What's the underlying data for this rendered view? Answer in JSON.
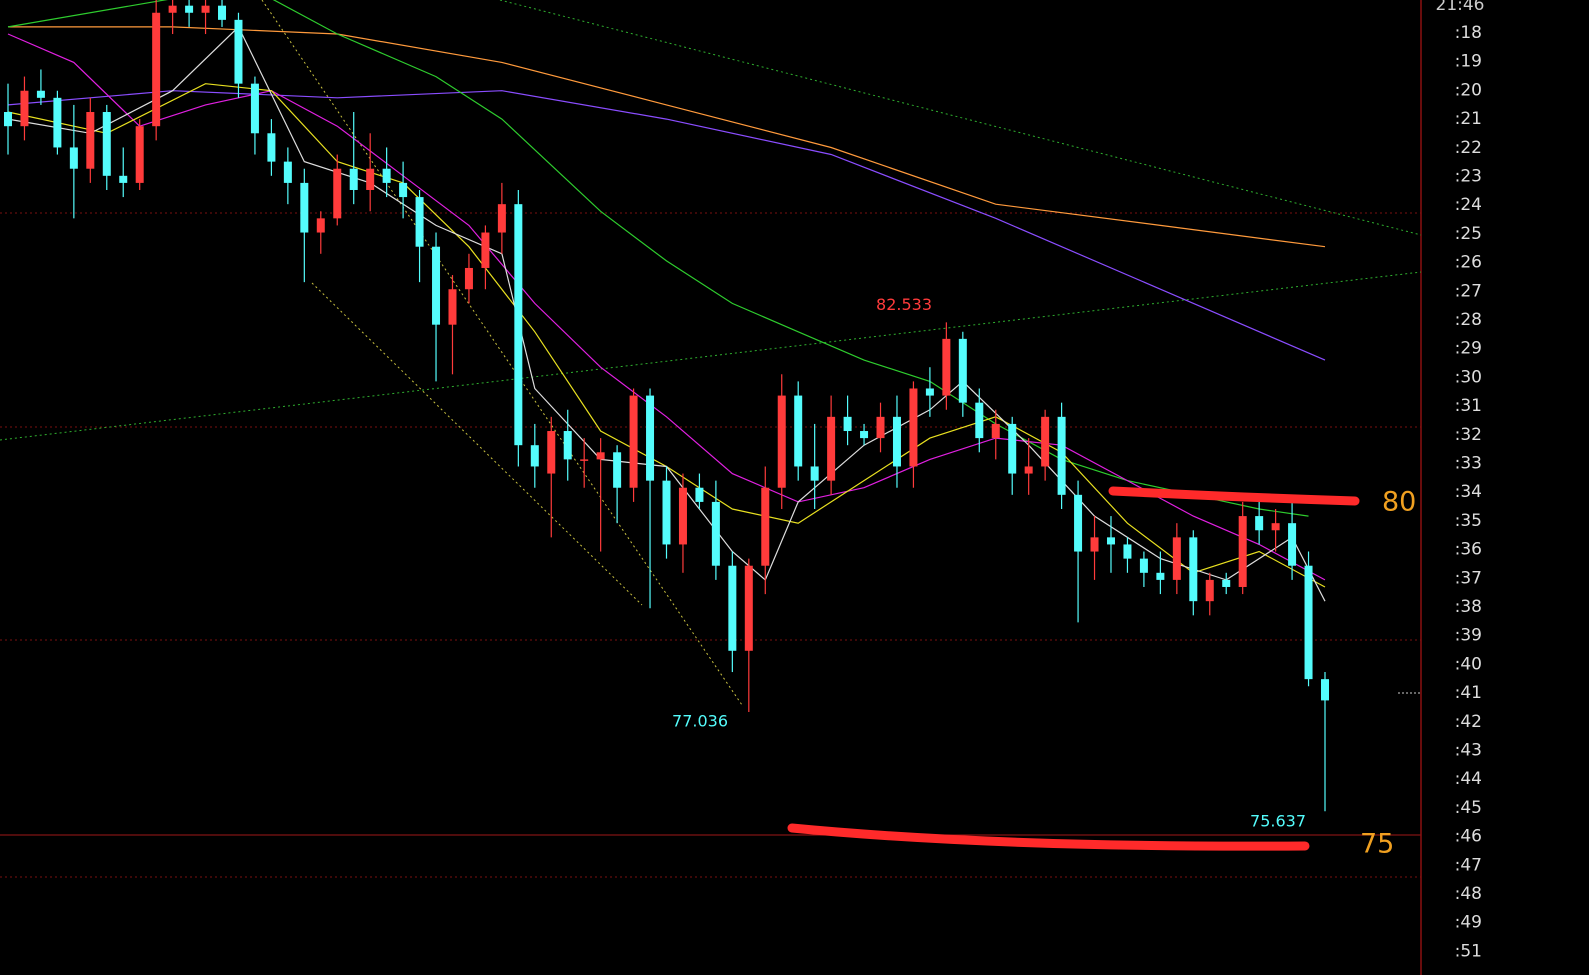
{
  "chart_data": {
    "type": "candlestick",
    "ylim": [
      73.51,
      87.08
    ],
    "up_color": "#ff3b3b",
    "down_color": "#54fcfc",
    "open": [
      85.5,
      85.3,
      85.8,
      85.7,
      85.0,
      84.7,
      85.5,
      84.6,
      84.5,
      85.3,
      86.9,
      87.0,
      86.9,
      87.0,
      86.8,
      85.9,
      85.2,
      84.8,
      84.5,
      83.8,
      84.0,
      84.7,
      84.4,
      84.7,
      84.5,
      84.3,
      83.6,
      82.5,
      83.0,
      83.3,
      83.8,
      84.2,
      80.8,
      80.4,
      81.0,
      80.6,
      80.6,
      80.7,
      80.2,
      81.5,
      80.3,
      79.4,
      80.2,
      80.0,
      79.1,
      77.9,
      79.1,
      80.2,
      81.5,
      80.5,
      80.3,
      81.2,
      81.0,
      80.9,
      81.2,
      80.5,
      81.6,
      81.5,
      82.3,
      81.4,
      80.9,
      81.1,
      80.4,
      80.5,
      81.2,
      80.1,
      79.3,
      79.5,
      79.4,
      79.2,
      79.0,
      78.9,
      79.5,
      78.6,
      78.9,
      78.8,
      79.8,
      79.6,
      79.7,
      79.1,
      77.5
    ],
    "high": [
      85.9,
      86.0,
      86.1,
      85.8,
      85.6,
      85.7,
      85.6,
      85.0,
      85.4,
      87.1,
      87.1,
      87.1,
      87.1,
      87.1,
      86.9,
      86.0,
      85.4,
      85.0,
      84.7,
      84.1,
      84.9,
      85.5,
      85.2,
      85.0,
      84.8,
      84.4,
      83.8,
      83.2,
      83.5,
      83.9,
      84.5,
      84.4,
      81.1,
      81.2,
      81.3,
      80.9,
      80.9,
      80.8,
      81.6,
      81.6,
      80.5,
      80.4,
      80.4,
      80.3,
      79.3,
      79.2,
      80.5,
      81.8,
      81.7,
      81.1,
      81.5,
      81.5,
      81.1,
      81.4,
      81.5,
      81.7,
      81.9,
      82.533,
      82.4,
      81.6,
      81.3,
      81.2,
      80.9,
      81.3,
      81.4,
      80.3,
      79.8,
      79.8,
      79.5,
      79.3,
      79.3,
      79.7,
      79.6,
      79.0,
      79.0,
      80.0,
      80.0,
      79.9,
      80.0,
      79.3,
      77.6
    ],
    "low": [
      84.9,
      85.1,
      85.6,
      84.9,
      84.0,
      84.5,
      84.4,
      84.3,
      84.4,
      85.1,
      86.6,
      86.7,
      86.6,
      86.7,
      85.7,
      84.9,
      84.6,
      84.2,
      83.1,
      83.5,
      83.9,
      84.2,
      84.1,
      84.3,
      84.0,
      83.1,
      81.7,
      81.8,
      82.8,
      83.0,
      83.5,
      80.5,
      80.2,
      79.5,
      80.3,
      80.2,
      79.3,
      79.7,
      80.0,
      78.5,
      79.2,
      79.0,
      79.9,
      78.9,
      77.6,
      77.036,
      78.7,
      79.9,
      80.3,
      79.9,
      80.1,
      80.8,
      80.8,
      80.7,
      80.2,
      80.2,
      81.2,
      81.3,
      81.2,
      80.7,
      80.6,
      80.1,
      80.1,
      80.3,
      79.9,
      78.3,
      78.9,
      79.0,
      79.0,
      78.8,
      78.7,
      78.7,
      78.4,
      78.4,
      78.7,
      78.7,
      79.4,
      79.3,
      78.9,
      77.4,
      75.637
    ],
    "close": [
      85.3,
      85.8,
      85.7,
      85.0,
      84.7,
      85.5,
      84.6,
      84.5,
      85.3,
      86.9,
      87.0,
      86.9,
      87.0,
      86.8,
      85.9,
      85.2,
      84.8,
      84.5,
      83.8,
      84.0,
      84.7,
      84.4,
      84.7,
      84.5,
      84.3,
      83.6,
      82.5,
      83.0,
      83.3,
      83.8,
      84.2,
      80.8,
      80.5,
      81.0,
      80.6,
      80.6,
      80.7,
      80.2,
      81.5,
      80.3,
      79.4,
      80.2,
      80.0,
      79.1,
      77.9,
      79.1,
      80.2,
      81.5,
      80.5,
      80.3,
      81.2,
      81.0,
      80.9,
      81.2,
      80.5,
      81.6,
      81.5,
      82.3,
      81.4,
      80.9,
      81.1,
      80.4,
      80.5,
      81.2,
      80.1,
      79.3,
      79.5,
      79.4,
      79.2,
      79.0,
      78.9,
      79.5,
      78.6,
      78.9,
      78.8,
      79.8,
      79.6,
      79.7,
      79.1,
      77.5,
      77.2
    ],
    "lines": [
      {
        "color": "#ff9a3c",
        "x": [
          0,
          10,
          20,
          30,
          40,
          50,
          60,
          70,
          80
        ],
        "values": [
          86.7,
          86.7,
          86.6,
          86.2,
          85.6,
          85.0,
          84.2,
          83.9,
          83.6
        ]
      },
      {
        "color": "#8a4dff",
        "x": [
          0,
          10,
          20,
          30,
          40,
          50,
          60,
          70,
          80
        ],
        "values": [
          85.6,
          85.8,
          85.7,
          85.8,
          85.4,
          84.9,
          84.0,
          83.0,
          82.0
        ]
      },
      {
        "color": "#2ecc2e",
        "x": [
          0,
          10,
          16,
          20,
          26,
          30,
          36,
          40,
          44,
          48,
          52,
          56,
          60,
          64,
          68,
          72,
          76,
          79
        ],
        "values": [
          86.7,
          87.1,
          87.1,
          86.6,
          86.0,
          85.4,
          84.1,
          83.4,
          82.8,
          82.4,
          82.0,
          81.7,
          81.1,
          80.6,
          80.3,
          80.1,
          79.9,
          79.8
        ]
      },
      {
        "color": "#e020e0",
        "x": [
          0,
          4,
          8,
          12,
          16,
          20,
          24,
          28,
          32,
          36,
          40,
          44,
          48,
          52,
          56,
          60,
          64,
          68,
          72,
          76,
          80
        ],
        "values": [
          86.6,
          86.2,
          85.3,
          85.6,
          85.8,
          85.3,
          84.6,
          83.9,
          82.8,
          81.9,
          81.2,
          80.4,
          80.0,
          80.2,
          80.6,
          80.9,
          80.8,
          80.3,
          79.8,
          79.4,
          78.9
        ]
      },
      {
        "color": "#e8e020",
        "x": [
          0,
          6,
          12,
          16,
          20,
          24,
          28,
          32,
          36,
          40,
          44,
          48,
          52,
          56,
          60,
          64,
          68,
          72,
          76,
          80
        ],
        "values": [
          85.5,
          85.2,
          85.9,
          85.8,
          84.8,
          84.5,
          83.6,
          82.4,
          81.0,
          80.5,
          79.9,
          79.7,
          80.3,
          80.9,
          81.2,
          80.7,
          79.7,
          79.0,
          79.3,
          78.8
        ]
      },
      {
        "color": "#dddddd",
        "x": [
          0,
          5,
          10,
          14,
          18,
          22,
          26,
          30,
          32,
          36,
          40,
          44,
          46,
          48,
          52,
          56,
          58,
          62,
          66,
          70,
          74,
          78,
          80
        ],
        "values": [
          85.4,
          85.2,
          85.8,
          86.7,
          84.8,
          84.5,
          83.9,
          83.5,
          81.6,
          80.6,
          80.5,
          79.3,
          78.9,
          80.0,
          80.8,
          81.3,
          81.7,
          80.8,
          79.8,
          79.2,
          78.9,
          79.5,
          78.6
        ]
      }
    ],
    "annotations": {
      "high_label": 82.533,
      "low_label": 77.036,
      "last_low_label": 75.637,
      "level_upper": 80,
      "level_lower": 75
    }
  },
  "time_panel": {
    "current": "21:46",
    "labels": [
      ":18",
      ":19",
      ":20",
      ":21",
      ":22",
      ":23",
      ":24",
      ":25",
      ":26",
      ":27",
      ":28",
      ":29",
      ":30",
      ":31",
      ":32",
      ":33",
      ":34",
      ":35",
      ":36",
      ":37",
      ":38",
      ":39",
      ":40",
      ":41",
      ":42",
      ":43",
      ":44",
      ":45",
      ":46",
      ":47",
      ":48",
      ":49",
      ":51"
    ]
  }
}
